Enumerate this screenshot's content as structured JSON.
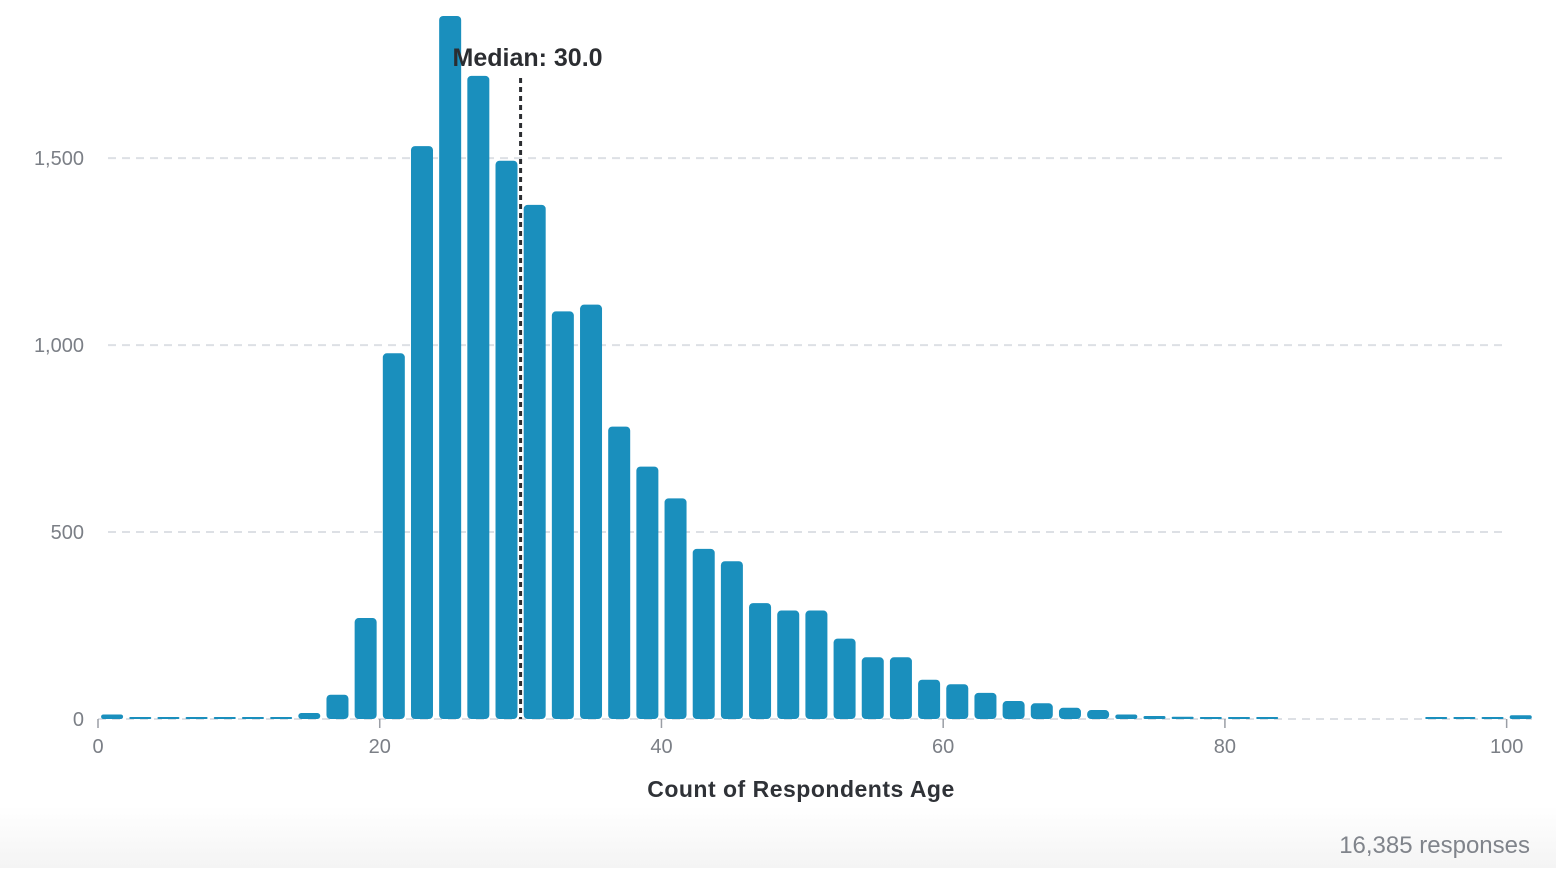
{
  "chart_data": {
    "type": "bar",
    "title": "",
    "xlabel": "Count of Respondents Age",
    "ylabel": "",
    "x": [
      1,
      3,
      5,
      7,
      9,
      11,
      13,
      15,
      17,
      19,
      21,
      23,
      25,
      27,
      29,
      31,
      33,
      35,
      37,
      39,
      41,
      43,
      45,
      47,
      49,
      51,
      53,
      55,
      57,
      59,
      61,
      63,
      65,
      67,
      69,
      71,
      73,
      75,
      77,
      79,
      81,
      83,
      85,
      87,
      89,
      91,
      93,
      95,
      97,
      99,
      101
    ],
    "values": [
      12,
      3,
      1,
      2,
      2,
      4,
      5,
      16,
      65,
      270,
      978,
      1532,
      1880,
      1720,
      1493,
      1375,
      1090,
      1108,
      782,
      675,
      590,
      455,
      422,
      310,
      290,
      290,
      215,
      165,
      165,
      105,
      93,
      70,
      48,
      42,
      30,
      24,
      12,
      8,
      6,
      4,
      3,
      2,
      0,
      0,
      0,
      0,
      0,
      1,
      2,
      4,
      10
    ],
    "xlim": [
      0,
      101.8
    ],
    "ylim": [
      0,
      1880
    ],
    "xticks": [
      0,
      20,
      40,
      60,
      80,
      100
    ],
    "xtick_labels": [
      "0",
      "20",
      "40",
      "60",
      "80",
      "100"
    ],
    "yticks": [
      0,
      500,
      1000,
      1500
    ],
    "ytick_labels": [
      "0",
      "500",
      "1,000",
      "1,500"
    ],
    "grid": "horizontal-dashed",
    "legend": "none",
    "median": {
      "value": 30.0,
      "label": "Median: 30.0"
    },
    "bar_color": "#1a8fbd",
    "gridline_color": "#dde0e5",
    "median_line_color": "#2b2d31"
  },
  "footer": {
    "response_count": "16,385 responses"
  }
}
